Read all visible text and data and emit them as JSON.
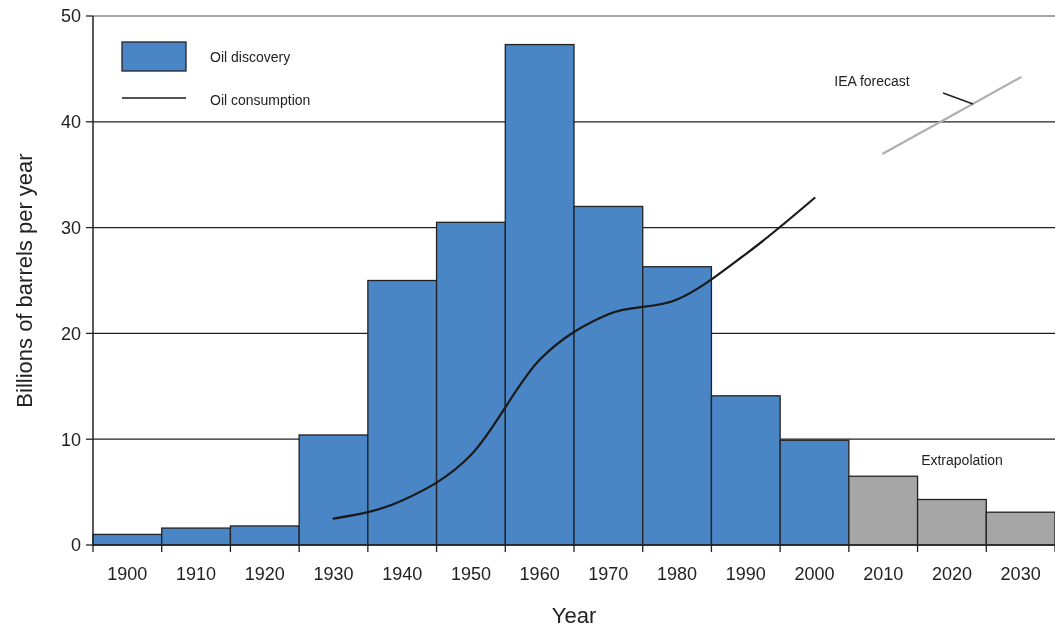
{
  "chart_data": {
    "type": "bar",
    "xlabel": "Year",
    "ylabel": "Billions of barrels per year",
    "categories": [
      "1900",
      "1910",
      "1920",
      "1930",
      "1940",
      "1950",
      "1960",
      "1970",
      "1980",
      "1990",
      "2000",
      "2010",
      "2020",
      "2030"
    ],
    "series": [
      {
        "name": "Oil discovery",
        "color": "#4a86c6",
        "colors": [
          "#4a86c6",
          "#4a86c6",
          "#4a86c6",
          "#4a86c6",
          "#4a86c6",
          "#4a86c6",
          "#4a86c6",
          "#4a86c6",
          "#4a86c6",
          "#4a86c6",
          "#4a86c6",
          "#a6a6a6",
          "#a6a6a6",
          "#a6a6a6"
        ],
        "values": [
          1.0,
          1.6,
          1.8,
          10.4,
          25,
          30.5,
          47.3,
          32,
          26.3,
          14.1,
          9.9,
          6.5,
          4.3,
          3.1
        ]
      },
      {
        "name": "Oil consumption",
        "type": "line",
        "color": "#1a1a1a",
        "values": [
          null,
          null,
          null,
          2.5,
          4.2,
          8.5,
          17.5,
          21.8,
          23.2,
          27.5,
          32.8,
          null,
          null,
          null
        ]
      },
      {
        "type": "line",
        "color": "#b0b0b0",
        "values": [
          null,
          null,
          null,
          null,
          null,
          null,
          null,
          null,
          null,
          null,
          null,
          37.0,
          40.6,
          44.2
        ]
      }
    ],
    "annotations": [
      "IEA forecast",
      "Extrapolation"
    ],
    "ylim": [
      0,
      50
    ],
    "yticks": [
      0,
      10,
      20,
      30,
      40,
      50
    ],
    "grid": "y",
    "legend": "top left"
  }
}
